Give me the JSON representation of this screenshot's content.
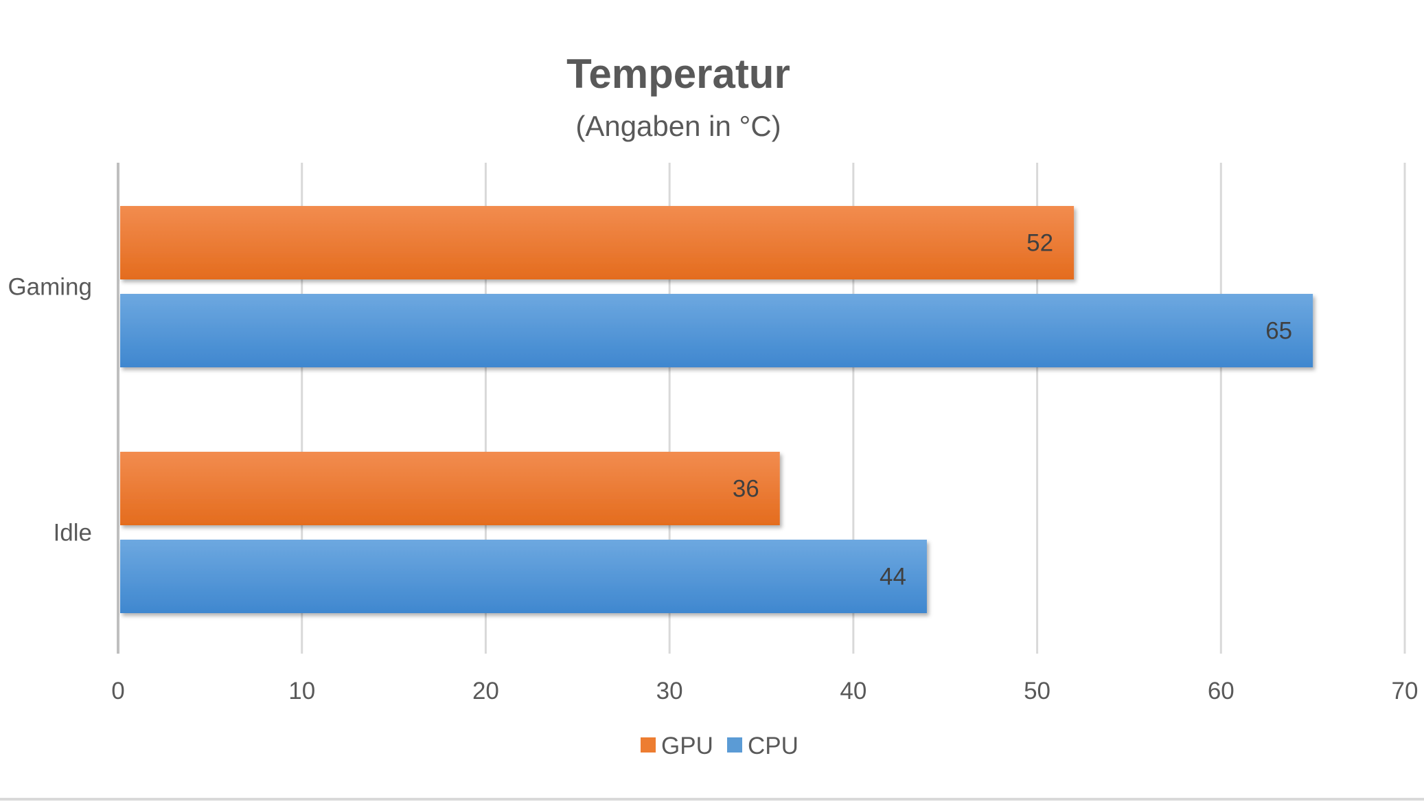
{
  "chart_data": {
    "type": "bar",
    "orientation": "horizontal",
    "title": "Temperatur",
    "subtitle": "(Angaben in °C)",
    "categories": [
      "Gaming",
      "Idle"
    ],
    "series": [
      {
        "name": "GPU",
        "color": "#ED7D31",
        "values": [
          52,
          36
        ]
      },
      {
        "name": "CPU",
        "color": "#5B9BD5",
        "values": [
          65,
          44
        ]
      }
    ],
    "xlim": [
      0,
      70
    ],
    "x_ticks": [
      0,
      10,
      20,
      30,
      40,
      50,
      60,
      70
    ],
    "grid": "vertical",
    "legend": "bottom",
    "data_labels": true
  }
}
